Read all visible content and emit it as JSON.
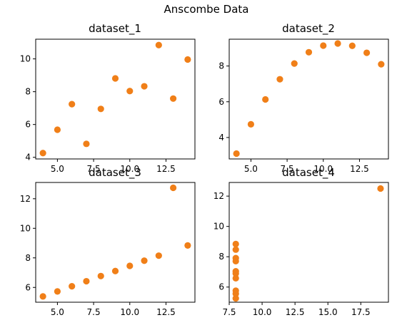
{
  "figure": {
    "suptitle": "Anscombe Data",
    "point_color": "#f07f18"
  },
  "chart_data": [
    {
      "type": "scatter",
      "title": "dataset_1",
      "xlim": [
        3.5,
        14.5
      ],
      "ylim": [
        3.9,
        11.2
      ],
      "xticks": [
        5,
        7.5,
        10,
        12.5
      ],
      "xtick_labels": [
        "5.0",
        "7.5",
        "10.0",
        "12.5"
      ],
      "yticks": [
        4,
        6,
        8,
        10
      ],
      "ytick_labels": [
        "4",
        "6",
        "8",
        "10"
      ],
      "x": [
        10,
        8,
        13,
        9,
        11,
        14,
        6,
        4,
        12,
        7,
        5
      ],
      "y": [
        8.04,
        6.95,
        7.58,
        8.81,
        8.33,
        9.96,
        7.24,
        4.26,
        10.84,
        4.82,
        5.68
      ]
    },
    {
      "type": "scatter",
      "title": "dataset_2",
      "xlim": [
        3.5,
        14.5
      ],
      "ylim": [
        2.8,
        9.5
      ],
      "xticks": [
        5,
        7.5,
        10,
        12.5
      ],
      "xtick_labels": [
        "5.0",
        "7.5",
        "10.0",
        "12.5"
      ],
      "yticks": [
        4,
        6,
        8
      ],
      "ytick_labels": [
        "4",
        "6",
        "8"
      ],
      "x": [
        10,
        8,
        13,
        9,
        11,
        14,
        6,
        4,
        12,
        7,
        5
      ],
      "y": [
        9.14,
        8.14,
        8.74,
        8.77,
        9.26,
        8.1,
        6.13,
        3.1,
        9.13,
        7.26,
        4.74
      ]
    },
    {
      "type": "scatter",
      "title": "dataset_3",
      "xlim": [
        3.5,
        14.5
      ],
      "ylim": [
        5.0,
        13.1
      ],
      "xticks": [
        5,
        7.5,
        10,
        12.5
      ],
      "xtick_labels": [
        "5.0",
        "7.5",
        "10.0",
        "12.5"
      ],
      "yticks": [
        6,
        8,
        10,
        12
      ],
      "ytick_labels": [
        "6",
        "8",
        "10",
        "12"
      ],
      "x": [
        10,
        8,
        13,
        9,
        11,
        14,
        6,
        4,
        12,
        7,
        5
      ],
      "y": [
        7.46,
        6.77,
        12.74,
        7.11,
        7.81,
        8.84,
        6.08,
        5.39,
        8.15,
        6.42,
        5.73
      ]
    },
    {
      "type": "scatter",
      "title": "dataset_4",
      "xlim": [
        7.5,
        19.6
      ],
      "ylim": [
        5.0,
        12.9
      ],
      "xticks": [
        7.5,
        10,
        12.5,
        15,
        17.5
      ],
      "xtick_labels": [
        "7.5",
        "10.0",
        "12.5",
        "15.0",
        "17.5"
      ],
      "yticks": [
        6,
        8,
        10,
        12
      ],
      "ytick_labels": [
        "6",
        "8",
        "10",
        "12"
      ],
      "x": [
        8,
        8,
        8,
        8,
        8,
        8,
        8,
        19,
        8,
        8,
        8
      ],
      "y": [
        6.58,
        5.76,
        7.71,
        8.84,
        8.47,
        7.04,
        5.25,
        12.5,
        5.56,
        7.91,
        6.89
      ]
    }
  ]
}
